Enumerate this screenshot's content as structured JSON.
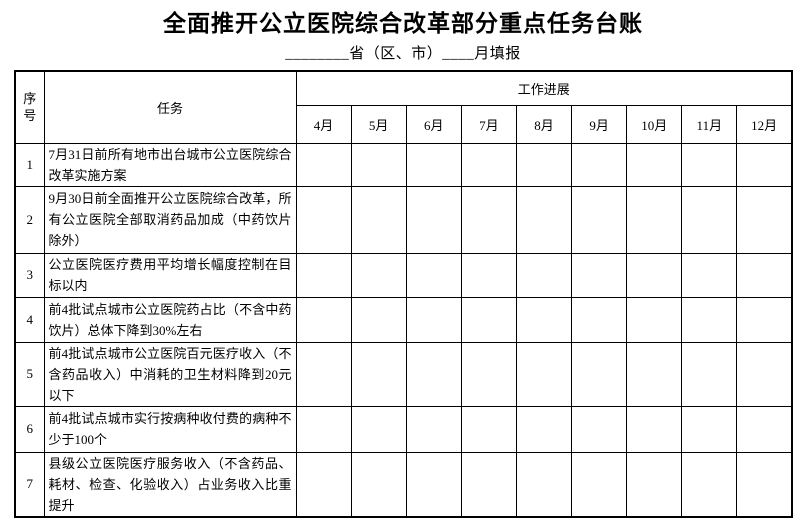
{
  "page": {
    "title": "全面推开公立医院综合改革部分重点任务台账",
    "subtitle": "________省（区、市）____月填报"
  },
  "table": {
    "headers": {
      "serial": "序号",
      "task": "任务",
      "progress": "工作进展",
      "months": [
        "4月",
        "5月",
        "6月",
        "7月",
        "8月",
        "9月",
        "10月",
        "11月",
        "12月"
      ]
    },
    "rows": [
      {
        "no": "1",
        "task": "7月31日前所有地市出台城市公立医院综合改革实施方案",
        "progress": [
          "",
          "",
          "",
          "",
          "",
          "",
          "",
          "",
          ""
        ]
      },
      {
        "no": "2",
        "task": "9月30日前全面推开公立医院综合改革，所有公立医院全部取消药品加成（中药饮片除外）",
        "progress": [
          "",
          "",
          "",
          "",
          "",
          "",
          "",
          "",
          ""
        ]
      },
      {
        "no": "3",
        "task": "公立医院医疗费用平均增长幅度控制在目标以内",
        "progress": [
          "",
          "",
          "",
          "",
          "",
          "",
          "",
          "",
          ""
        ]
      },
      {
        "no": "4",
        "task": "前4批试点城市公立医院药占比（不含中药饮片）总体下降到30%左右",
        "progress": [
          "",
          "",
          "",
          "",
          "",
          "",
          "",
          "",
          ""
        ]
      },
      {
        "no": "5",
        "task": "前4批试点城市公立医院百元医疗收入（不含药品收入）中消耗的卫生材料降到20元以下",
        "progress": [
          "",
          "",
          "",
          "",
          "",
          "",
          "",
          "",
          ""
        ]
      },
      {
        "no": "6",
        "task": "前4批试点城市实行按病种收付费的病种不少于100个",
        "progress": [
          "",
          "",
          "",
          "",
          "",
          "",
          "",
          "",
          ""
        ]
      },
      {
        "no": "7",
        "task": "县级公立医院医疗服务收入（不含药品、耗材、检查、化验收入）占业务收入比重提升",
        "progress": [
          "",
          "",
          "",
          "",
          "",
          "",
          "",
          "",
          ""
        ]
      }
    ]
  }
}
